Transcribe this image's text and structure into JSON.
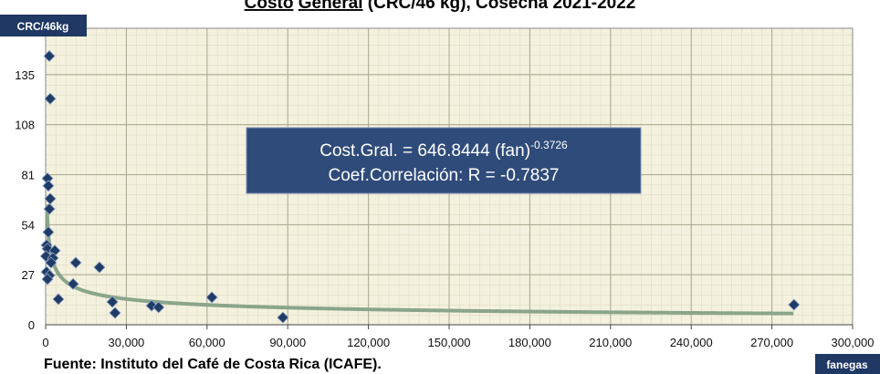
{
  "chart_data": {
    "type": "scatter",
    "title_parts": [
      {
        "text": "Costo",
        "underline": true
      },
      {
        "text": " ",
        "underline": false
      },
      {
        "text": "General",
        "underline": true
      },
      {
        "text": " (CRC/46 kg), Cosecha 2021-2022",
        "underline": false
      }
    ],
    "y_label": "CRC/46kg",
    "x_label": "fanegas",
    "source": "Fuente: Instituto del Café de Costa Rica (ICAFE).",
    "xlim": [
      0,
      300000
    ],
    "ylim": [
      0,
      160
    ],
    "xticks": [
      0,
      {
        "value": 30000,
        "label": "30,000"
      },
      {
        "value": 60000,
        "label": "60,000"
      },
      {
        "value": 90000,
        "label": "90,000"
      },
      {
        "value": 120000,
        "label": "120,000"
      },
      {
        "value": 150000,
        "label": "150,000"
      },
      {
        "value": 180000,
        "label": "180,000"
      },
      {
        "value": 210000,
        "label": "210,000"
      },
      {
        "value": 240000,
        "label": "240,000"
      },
      {
        "value": 270000,
        "label": "270,000"
      },
      {
        "value": 300000,
        "label": "300,000"
      }
    ],
    "yticks": [
      0,
      27,
      54,
      81,
      108,
      135
    ],
    "grid": true,
    "minor_grid": true,
    "color": "#1f3b66",
    "x": [
      1360,
      1700,
      680,
      1000,
      1700,
      1400,
      1000,
      340,
      680,
      100,
      3400,
      2700,
      2000,
      340,
      1400,
      680,
      4750,
      11200,
      10200,
      20000,
      24800,
      25800,
      39400,
      42000,
      61800,
      88200,
      278200
    ],
    "values": [
      145,
      122,
      79,
      75,
      68,
      62.5,
      50,
      43,
      41,
      37,
      40,
      36,
      33.5,
      28.5,
      26.6,
      24.6,
      13.8,
      33.5,
      22,
      31,
      12.3,
      6.4,
      10.3,
      9.4,
      14.8,
      3.9,
      10.8
    ],
    "trendline": {
      "color": "#8aa58a",
      "prefix": "Cost.Gral. = ",
      "coefficient": 646.8444,
      "variable": " (fan)",
      "exponent": -0.3726,
      "correlation_label": "Coef.Correlación: R = ",
      "correlation": -0.7837
    }
  }
}
